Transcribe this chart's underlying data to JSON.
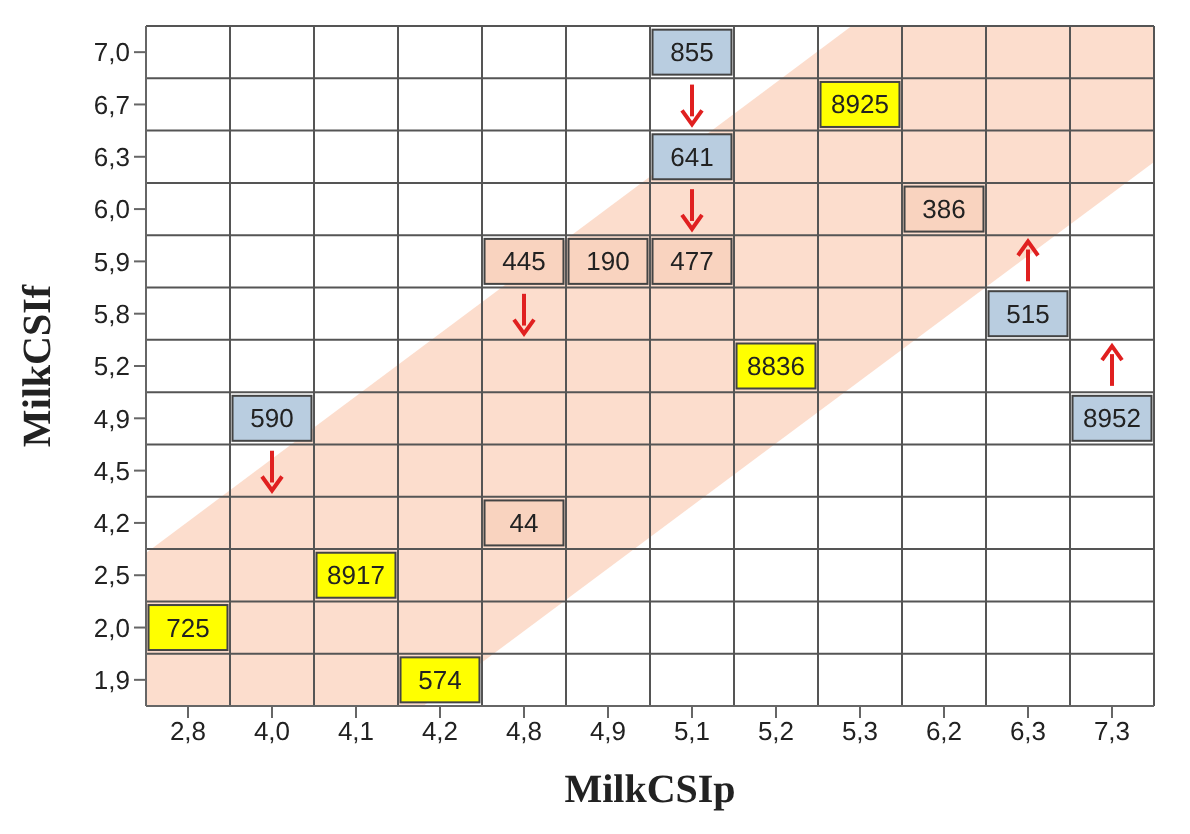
{
  "chart_data": {
    "type": "heatmap",
    "xlabel": "MilkCSIp",
    "ylabel": "MilkCSIf",
    "categories": [
      "2,8",
      "4,0",
      "4,1",
      "4,2",
      "4,8",
      "4,9",
      "5,1",
      "5,2",
      "5,3",
      "6,2",
      "6,3",
      "7,3"
    ],
    "y_categories": [
      "7,0",
      "6,7",
      "6,3",
      "6,0",
      "5,9",
      "5,8",
      "5,2",
      "4,9",
      "4,5",
      "4,2",
      "2,5",
      "2,0",
      "1,9"
    ],
    "cells": [
      [
        null,
        null,
        null,
        null,
        null,
        null,
        855,
        null,
        null,
        null,
        null,
        null
      ],
      [
        null,
        null,
        null,
        null,
        null,
        null,
        null,
        null,
        8925,
        null,
        null,
        null
      ],
      [
        null,
        null,
        null,
        null,
        null,
        null,
        641,
        null,
        null,
        null,
        null,
        null
      ],
      [
        null,
        null,
        null,
        null,
        null,
        null,
        null,
        null,
        null,
        386,
        null,
        null
      ],
      [
        null,
        null,
        null,
        null,
        445,
        190,
        477,
        null,
        null,
        null,
        null,
        null
      ],
      [
        null,
        null,
        null,
        null,
        null,
        null,
        null,
        null,
        null,
        null,
        515,
        null
      ],
      [
        null,
        null,
        null,
        null,
        null,
        null,
        null,
        8836,
        null,
        null,
        null,
        null
      ],
      [
        null,
        590,
        null,
        null,
        null,
        null,
        null,
        null,
        null,
        null,
        null,
        8952
      ],
      [
        null,
        null,
        null,
        null,
        null,
        null,
        null,
        null,
        null,
        null,
        null,
        null
      ],
      [
        null,
        null,
        null,
        null,
        44,
        null,
        null,
        null,
        null,
        null,
        null,
        null
      ],
      [
        null,
        null,
        8917,
        null,
        null,
        null,
        null,
        null,
        null,
        null,
        null,
        null
      ],
      [
        725,
        null,
        null,
        null,
        null,
        null,
        null,
        null,
        null,
        null,
        null,
        null
      ],
      [
        null,
        null,
        null,
        574,
        null,
        null,
        null,
        null,
        null,
        null,
        null,
        null
      ]
    ],
    "colors": [
      [
        null,
        null,
        null,
        null,
        null,
        null,
        "#b9cde0",
        null,
        null,
        null,
        null,
        null
      ],
      [
        null,
        null,
        null,
        null,
        null,
        null,
        null,
        null,
        "#ffff00",
        null,
        null,
        null
      ],
      [
        null,
        null,
        null,
        null,
        null,
        null,
        "#b9cde0",
        null,
        null,
        null,
        null,
        null
      ],
      [
        null,
        null,
        null,
        null,
        null,
        null,
        null,
        null,
        null,
        "#f9d3bf",
        null,
        null
      ],
      [
        null,
        null,
        null,
        null,
        "#f9d3bf",
        "#f9d3bf",
        "#f9d3bf",
        null,
        null,
        null,
        null,
        null
      ],
      [
        null,
        null,
        null,
        null,
        null,
        null,
        null,
        null,
        null,
        null,
        "#b9cde0",
        null
      ],
      [
        null,
        null,
        null,
        null,
        null,
        null,
        null,
        "#ffff00",
        null,
        null,
        null,
        null
      ],
      [
        null,
        "#b9cde0",
        null,
        null,
        null,
        null,
        null,
        null,
        null,
        null,
        null,
        "#b9cde0"
      ],
      [
        null,
        null,
        null,
        null,
        null,
        null,
        null,
        null,
        null,
        null,
        null,
        null
      ],
      [
        null,
        null,
        null,
        null,
        "#f9d3bf",
        null,
        null,
        null,
        null,
        null,
        null,
        null
      ],
      [
        null,
        null,
        "#ffff00",
        null,
        null,
        null,
        null,
        null,
        null,
        null,
        null,
        null
      ],
      [
        "#ffff00",
        null,
        null,
        null,
        null,
        null,
        null,
        null,
        null,
        null,
        null,
        null
      ],
      [
        null,
        null,
        null,
        "#ffff00",
        null,
        null,
        null,
        null,
        null,
        null,
        null,
        null
      ]
    ],
    "grid": true,
    "data_labels": true
  }
}
